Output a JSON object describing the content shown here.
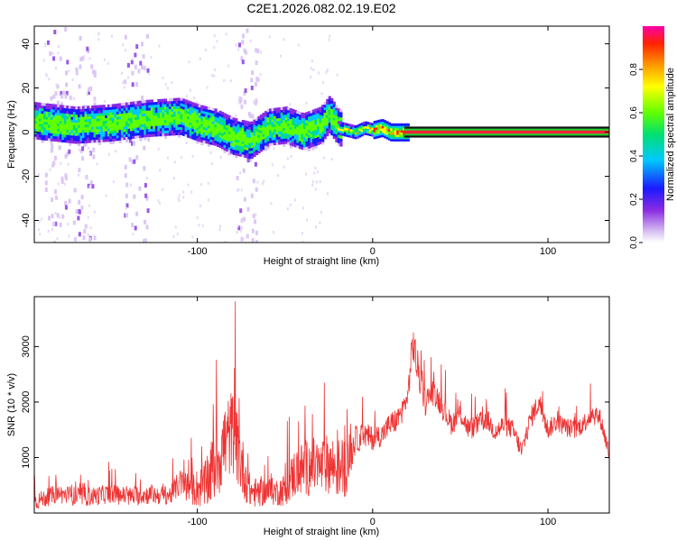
{
  "title": "C2E1.2026.082.02.19.E02",
  "chart_data": [
    {
      "type": "heatmap",
      "name": "spectrogram",
      "xlabel": "Height of straight line (km)",
      "ylabel": "Frequency (Hz)",
      "xlim": [
        -193,
        135
      ],
      "ylim": [
        -50,
        48
      ],
      "x_ticks": [
        {
          "v": -100,
          "label": "-100"
        },
        {
          "v": 0,
          "label": "0"
        },
        {
          "v": 100,
          "label": "100"
        }
      ],
      "y_ticks": [
        {
          "v": -40,
          "label": "-40"
        },
        {
          "v": -20,
          "label": "-20"
        },
        {
          "v": 0,
          "label": "0"
        },
        {
          "v": 20,
          "label": "20"
        },
        {
          "v": 40,
          "label": "40"
        }
      ],
      "ridge": {
        "x": [
          -193,
          -170,
          -150,
          -130,
          -110,
          -100,
          -90,
          -80,
          -70,
          -60,
          -50,
          -40,
          -30,
          -25,
          -20,
          -15,
          -10,
          -5,
          0,
          5,
          10,
          20,
          135
        ],
        "freq": [
          5,
          3,
          4,
          6,
          7,
          4,
          2,
          -2,
          -4,
          2,
          3,
          0,
          3,
          8,
          2,
          1,
          0,
          2,
          1,
          2,
          0,
          0,
          0
        ]
      },
      "colorbar": {
        "label": "Normalized spectral amplitude",
        "range": [
          0,
          1
        ],
        "ticks": [
          {
            "v": 0.0,
            "label": "0.0"
          },
          {
            "v": 0.2,
            "label": "0.2"
          },
          {
            "v": 0.4,
            "label": "0.4"
          },
          {
            "v": 0.6,
            "label": "0.6"
          },
          {
            "v": 0.8,
            "label": "0.8"
          }
        ]
      }
    },
    {
      "type": "line",
      "name": "snr",
      "xlabel": "Height of straight line (km)",
      "ylabel": "SNR (10 * v/v)",
      "xlim": [
        -193,
        135
      ],
      "ylim": [
        0,
        3900
      ],
      "color": "#ee3333",
      "x_ticks": [
        {
          "v": -100,
          "label": "-100"
        },
        {
          "v": 0,
          "label": "0"
        },
        {
          "v": 100,
          "label": "100"
        }
      ],
      "y_ticks": [
        {
          "v": 1000,
          "label": "1000"
        },
        {
          "v": 2000,
          "label": "2000"
        },
        {
          "v": 3000,
          "label": "3000"
        }
      ],
      "series_envelope": {
        "x": [
          -193,
          -180,
          -170,
          -160,
          -150,
          -140,
          -130,
          -120,
          -115,
          -110,
          -105,
          -100,
          -95,
          -90,
          -85,
          -80,
          -75,
          -70,
          -65,
          -60,
          -55,
          -50,
          -45,
          -40,
          -35,
          -30,
          -25,
          -20,
          -15,
          -10,
          -5,
          0,
          5,
          10,
          15,
          20,
          23,
          25,
          30,
          35,
          40,
          45,
          50,
          55,
          60,
          65,
          70,
          75,
          80,
          85,
          90,
          95,
          100,
          105,
          110,
          115,
          120,
          125,
          130,
          135
        ],
        "base": [
          200,
          350,
          300,
          300,
          350,
          300,
          330,
          320,
          330,
          550,
          450,
          450,
          500,
          900,
          1200,
          1500,
          900,
          400,
          350,
          400,
          380,
          420,
          700,
          800,
          850,
          800,
          900,
          800,
          850,
          1300,
          1400,
          1350,
          1400,
          1600,
          1700,
          2100,
          3100,
          2700,
          2000,
          2200,
          1900,
          1600,
          1800,
          1500,
          1600,
          1700,
          1450,
          1600,
          1500,
          1100,
          1700,
          2000,
          1500,
          1650,
          1550,
          1500,
          1600,
          1800,
          1700,
          1050
        ],
        "spread": [
          300,
          350,
          350,
          350,
          350,
          350,
          350,
          350,
          350,
          500,
          600,
          700,
          900,
          1400,
          1600,
          1500,
          1200,
          600,
          500,
          500,
          500,
          600,
          900,
          1000,
          1100,
          1000,
          1100,
          1100,
          1100,
          500,
          450,
          450,
          400,
          450,
          450,
          400,
          800,
          700,
          500,
          500,
          450,
          400,
          400,
          400,
          400,
          400,
          350,
          400,
          350,
          350,
          400,
          400,
          350,
          350,
          350,
          350,
          350,
          400,
          350,
          300
        ]
      }
    }
  ]
}
